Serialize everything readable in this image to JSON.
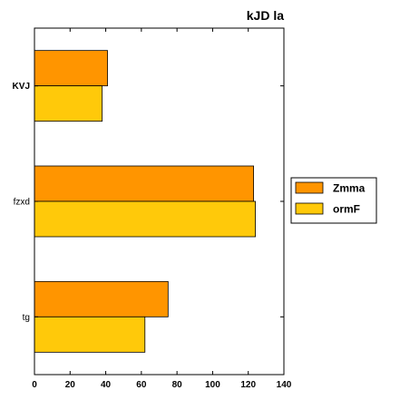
{
  "chart_data": {
    "type": "bar",
    "orientation": "horizontal",
    "title": "kJD la",
    "xlabel": "",
    "ylabel": "",
    "categories": [
      "KVJ",
      "fzxd",
      "tg"
    ],
    "bold_categories": [
      "KVJ"
    ],
    "series": [
      {
        "name": "Zmma",
        "color": "#ff9500",
        "values": [
          41,
          123,
          75
        ]
      },
      {
        "name": "ormF",
        "color": "#ffc90a",
        "values": [
          38,
          124,
          62
        ]
      }
    ],
    "xlim": [
      0,
      140
    ],
    "xticks": [
      0,
      20,
      40,
      60,
      80,
      100,
      120,
      140
    ],
    "grid": false,
    "legend_position": "right"
  }
}
